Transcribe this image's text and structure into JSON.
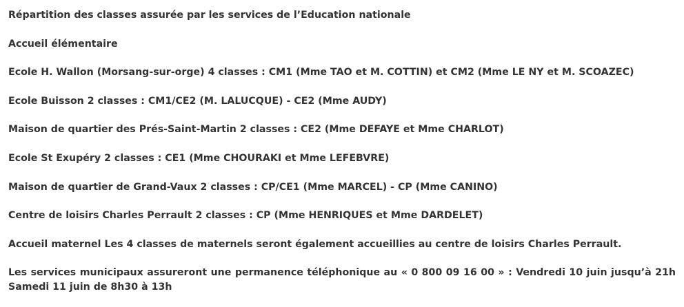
{
  "paragraphs": [
    "Répartition des classes assurée par les services de l’Education nationale",
    "Accueil élémentaire",
    "Ecole H. Wallon (Morsang-sur-orge) 4 classes : CM1 (Mme TAO et M. COTTIN) et CM2 (Mme LE NY et M. SCOAZEC)",
    "Ecole Buisson 2 classes : CM1/CE2 (M. LALUCQUE) - CE2 (Mme AUDY)",
    "Maison de quartier des Prés-Saint-Martin 2 classes : CE2 (Mme DEFAYE et Mme CHARLOT)",
    "Ecole St Exupéry 2 classes : CE1 (Mme CHOURAKI et Mme LEFEBVRE)",
    "Maison de quartier de Grand-Vaux 2 classes : CP/CE1 (Mme MARCEL) - CP (Mme CANINO)",
    "Centre de loisirs Charles Perrault 2 classes : CP (Mme HENRIQUES et Mme DARDELET)",
    "Accueil maternel Les 4 classes de maternels seront également accueillies au centre de loisirs Charles Perrault.",
    "Les services municipaux assureront une permanence téléphonique au « 0 800 09 16 00 » : Vendredi 10 juin jusqu’à 21h Samedi 11 juin de 8h30 à 13h"
  ]
}
